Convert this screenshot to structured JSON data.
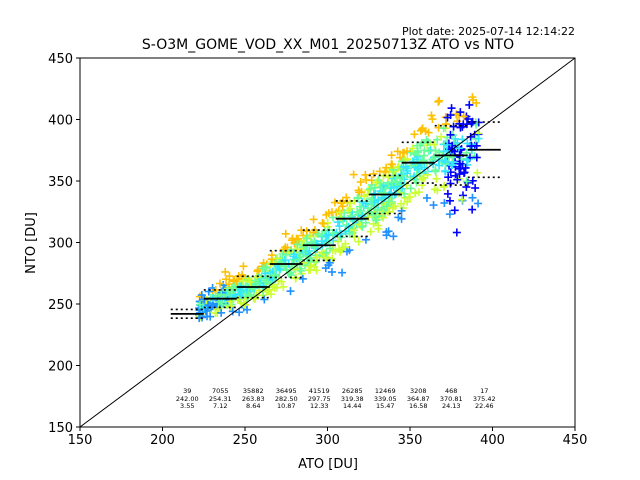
{
  "plot_date": "Plot date: 2025-07-14 12:14:22",
  "chart_data": {
    "type": "scatter",
    "title": "S-O3M_GOME_VOD_XX_M01_20250713Z ATO vs NTO",
    "xlabel": "ATO [DU]",
    "ylabel": "NTO [DU]",
    "xlim": [
      150,
      450
    ],
    "ylim": [
      150,
      450
    ],
    "xticks": [
      "150",
      "200",
      "250",
      "300",
      "350",
      "400",
      "450"
    ],
    "yticks": [
      "150",
      "200",
      "250",
      "300",
      "350",
      "400",
      "450"
    ],
    "grid": false,
    "reference_line": "1:1",
    "colors": {
      "low_density": "#0000ff",
      "density_2": "#1e90ff",
      "density_3": "#33e6ff",
      "density_4": "#66ff99",
      "density_5": "#ccff33",
      "high_density": "#ffc000",
      "bin_mean": "#000000"
    },
    "bins": [
      {
        "center": 215,
        "count": "39",
        "mean": "242.00",
        "std": "3.55"
      },
      {
        "center": 235,
        "count": "7055",
        "mean": "254.31",
        "std": "7.12"
      },
      {
        "center": 255,
        "count": "35882",
        "mean": "263.83",
        "std": "8.64"
      },
      {
        "center": 275,
        "count": "36495",
        "mean": "282.50",
        "std": "10.87"
      },
      {
        "center": 295,
        "count": "41519",
        "mean": "297.75",
        "std": "12.33"
      },
      {
        "center": 315,
        "count": "26285",
        "mean": "319.38",
        "std": "14.44"
      },
      {
        "center": 335,
        "count": "12469",
        "mean": "339.05",
        "std": "15.47"
      },
      {
        "center": 355,
        "count": "3208",
        "mean": "364.87",
        "std": "16.58"
      },
      {
        "center": 375,
        "count": "468",
        "mean": "370.81",
        "std": "24.13"
      },
      {
        "center": 395,
        "count": "17",
        "mean": "375.42",
        "std": "22.46"
      }
    ]
  }
}
